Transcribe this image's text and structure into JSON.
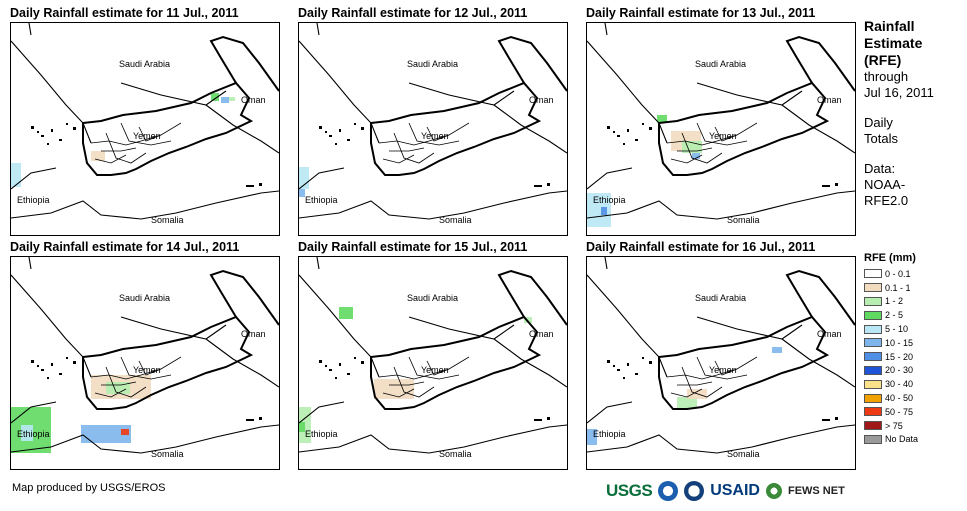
{
  "panels": [
    {
      "title": "Daily Rainfall estimate for 11 Jul., 2011"
    },
    {
      "title": "Daily Rainfall estimate for 12 Jul., 2011"
    },
    {
      "title": "Daily Rainfall estimate for 13 Jul., 2011"
    },
    {
      "title": "Daily Rainfall estimate for 14 Jul., 2011"
    },
    {
      "title": "Daily Rainfall estimate for 15 Jul., 2011"
    },
    {
      "title": "Daily Rainfall estimate for 16 Jul., 2011"
    }
  ],
  "map_labels": {
    "saudi": "Saudi Arabia",
    "oman": "Oman",
    "yemen": "Yemen",
    "ethiopia": "Ethiopia",
    "somalia": "Somalia"
  },
  "side": {
    "title1": "Rainfall",
    "title2": "Estimate",
    "title3": "(RFE)",
    "through": "through",
    "date": "Jul 16, 2011",
    "daily": "Daily",
    "totals": "Totals",
    "data_label": "Data:",
    "data_src1": "NOAA-",
    "data_src2": "RFE2.0"
  },
  "legend": {
    "title": "RFE (mm)",
    "items": [
      {
        "label": "0 - 0.1",
        "color": "#ffffff"
      },
      {
        "label": "0.1 - 1",
        "color": "#f2dcbf"
      },
      {
        "label": "1 - 2",
        "color": "#b5eeb0"
      },
      {
        "label": "2 - 5",
        "color": "#5fd960"
      },
      {
        "label": "5 - 10",
        "color": "#b9e7f5"
      },
      {
        "label": "10 - 15",
        "color": "#7db5ec"
      },
      {
        "label": "15 - 20",
        "color": "#4f8fe6"
      },
      {
        "label": "20 - 30",
        "color": "#1f54d9"
      },
      {
        "label": "30 - 40",
        "color": "#fbe28a"
      },
      {
        "label": "40 - 50",
        "color": "#f2a200"
      },
      {
        "label": "50 - 75",
        "color": "#ee3a12"
      },
      {
        "label": "> 75",
        "color": "#a01818"
      },
      {
        "label": "No Data",
        "color": "#9a9a9a"
      }
    ]
  },
  "footer": {
    "credit": "Map produced by USGS/EROS",
    "usgs": "USGS",
    "usaid": "USAID",
    "fews": "FEWS NET"
  }
}
